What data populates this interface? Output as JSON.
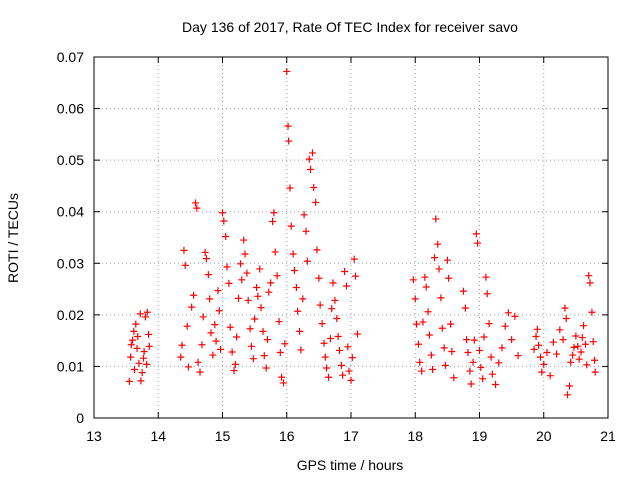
{
  "chart_data": {
    "type": "scatter",
    "title": "Day 136 of 2017, Rate Of TEC Index for receiver savo",
    "xlabel": "GPS time / hours",
    "ylabel": "ROTI / TECUs",
    "xlim": [
      13,
      21
    ],
    "ylim": [
      0,
      0.07
    ],
    "xticks": [
      13,
      14,
      15,
      16,
      17,
      18,
      19,
      20,
      21
    ],
    "yticks": [
      0,
      0.01,
      0.02,
      0.03,
      0.04,
      0.05,
      0.06,
      0.07
    ],
    "xtick_labels": [
      "13",
      "14",
      "15",
      "16",
      "17",
      "18",
      "19",
      "20",
      "21"
    ],
    "ytick_labels": [
      "0",
      "0.01",
      "0.02",
      "0.03",
      "0.04",
      "0.05",
      "0.06",
      "0.07"
    ],
    "grid": true,
    "marker": "+",
    "color": "#ff0000",
    "points": [
      [
        13.55,
        0.0071
      ],
      [
        13.57,
        0.0118
      ],
      [
        13.6,
        0.0151
      ],
      [
        13.62,
        0.0168
      ],
      [
        13.65,
        0.0182
      ],
      [
        13.67,
        0.0135
      ],
      [
        13.7,
        0.0106
      ],
      [
        13.72,
        0.0202
      ],
      [
        13.75,
        0.0088
      ],
      [
        13.78,
        0.0129
      ],
      [
        13.8,
        0.0196
      ],
      [
        13.82,
        0.0104
      ],
      [
        13.85,
        0.0162
      ],
      [
        13.58,
        0.0142
      ],
      [
        13.63,
        0.0094
      ],
      [
        13.68,
        0.0158
      ],
      [
        13.73,
        0.0072
      ],
      [
        13.77,
        0.0116
      ],
      [
        13.83,
        0.0205
      ],
      [
        13.86,
        0.0139
      ],
      [
        14.35,
        0.0118
      ],
      [
        14.37,
        0.0141
      ],
      [
        14.4,
        0.0325
      ],
      [
        14.42,
        0.0296
      ],
      [
        14.45,
        0.0178
      ],
      [
        14.47,
        0.0099
      ],
      [
        14.52,
        0.0215
      ],
      [
        14.55,
        0.0238
      ],
      [
        14.58,
        0.0417
      ],
      [
        14.6,
        0.0407
      ],
      [
        14.62,
        0.0108
      ],
      [
        14.65,
        0.0089
      ],
      [
        14.68,
        0.0142
      ],
      [
        14.7,
        0.0196
      ],
      [
        14.73,
        0.0321
      ],
      [
        14.75,
        0.0309
      ],
      [
        14.78,
        0.0278
      ],
      [
        14.8,
        0.0231
      ],
      [
        14.82,
        0.0165
      ],
      [
        14.85,
        0.0122
      ],
      [
        14.88,
        0.0181
      ],
      [
        14.9,
        0.0149
      ],
      [
        14.93,
        0.0247
      ],
      [
        14.95,
        0.0208
      ],
      [
        14.97,
        0.0133
      ],
      [
        15.0,
        0.0398
      ],
      [
        15.02,
        0.0382
      ],
      [
        15.05,
        0.0352
      ],
      [
        15.07,
        0.0293
      ],
      [
        15.1,
        0.0261
      ],
      [
        15.12,
        0.0176
      ],
      [
        15.15,
        0.0128
      ],
      [
        15.18,
        0.0092
      ],
      [
        15.2,
        0.0104
      ],
      [
        15.22,
        0.0157
      ],
      [
        15.25,
        0.0232
      ],
      [
        15.28,
        0.0299
      ],
      [
        15.3,
        0.0268
      ],
      [
        15.33,
        0.0345
      ],
      [
        15.35,
        0.0318
      ],
      [
        15.38,
        0.0281
      ],
      [
        15.4,
        0.0228
      ],
      [
        15.43,
        0.0173
      ],
      [
        15.45,
        0.0139
      ],
      [
        15.48,
        0.0115
      ],
      [
        15.5,
        0.0192
      ],
      [
        15.53,
        0.0253
      ],
      [
        15.55,
        0.0236
      ],
      [
        15.58,
        0.0289
      ],
      [
        15.6,
        0.0214
      ],
      [
        15.63,
        0.0168
      ],
      [
        15.65,
        0.0121
      ],
      [
        15.68,
        0.0097
      ],
      [
        15.7,
        0.0152
      ],
      [
        15.72,
        0.0244
      ],
      [
        15.75,
        0.0262
      ],
      [
        15.78,
        0.0381
      ],
      [
        15.8,
        0.0398
      ],
      [
        15.82,
        0.0322
      ],
      [
        15.85,
        0.0276
      ],
      [
        15.88,
        0.0187
      ],
      [
        15.9,
        0.0127
      ],
      [
        15.92,
        0.0079
      ],
      [
        15.95,
        0.0068
      ],
      [
        15.97,
        0.0144
      ],
      [
        16.0,
        0.0672
      ],
      [
        16.02,
        0.0566
      ],
      [
        16.03,
        0.0537
      ],
      [
        16.05,
        0.0446
      ],
      [
        16.07,
        0.0372
      ],
      [
        16.1,
        0.0318
      ],
      [
        16.12,
        0.0286
      ],
      [
        16.15,
        0.0253
      ],
      [
        16.17,
        0.0207
      ],
      [
        16.2,
        0.0168
      ],
      [
        16.22,
        0.0132
      ],
      [
        16.25,
        0.0231
      ],
      [
        16.27,
        0.0394
      ],
      [
        16.3,
        0.0362
      ],
      [
        16.32,
        0.0304
      ],
      [
        16.35,
        0.0502
      ],
      [
        16.37,
        0.0482
      ],
      [
        16.4,
        0.0514
      ],
      [
        16.42,
        0.0447
      ],
      [
        16.45,
        0.0418
      ],
      [
        16.47,
        0.0326
      ],
      [
        16.5,
        0.0271
      ],
      [
        16.52,
        0.0219
      ],
      [
        16.55,
        0.0183
      ],
      [
        16.58,
        0.0145
      ],
      [
        16.6,
        0.0118
      ],
      [
        16.62,
        0.0097
      ],
      [
        16.65,
        0.0079
      ],
      [
        16.68,
        0.0154
      ],
      [
        16.7,
        0.0212
      ],
      [
        16.72,
        0.0262
      ],
      [
        16.75,
        0.0228
      ],
      [
        16.78,
        0.0193
      ],
      [
        16.8,
        0.0158
      ],
      [
        16.82,
        0.0131
      ],
      [
        16.85,
        0.0102
      ],
      [
        16.87,
        0.0083
      ],
      [
        16.9,
        0.0284
      ],
      [
        16.93,
        0.0256
      ],
      [
        16.95,
        0.0138
      ],
      [
        16.97,
        0.0091
      ],
      [
        17.0,
        0.0073
      ],
      [
        17.02,
        0.0117
      ],
      [
        17.05,
        0.0308
      ],
      [
        17.07,
        0.0275
      ],
      [
        17.1,
        0.0163
      ],
      [
        17.97,
        0.0268
      ],
      [
        18.0,
        0.0231
      ],
      [
        18.02,
        0.0182
      ],
      [
        18.05,
        0.0143
      ],
      [
        18.07,
        0.0108
      ],
      [
        18.1,
        0.0091
      ],
      [
        18.12,
        0.0186
      ],
      [
        18.15,
        0.0273
      ],
      [
        18.17,
        0.0254
      ],
      [
        18.2,
        0.0206
      ],
      [
        18.22,
        0.0161
      ],
      [
        18.25,
        0.0122
      ],
      [
        18.27,
        0.0094
      ],
      [
        18.3,
        0.0311
      ],
      [
        18.32,
        0.0386
      ],
      [
        18.35,
        0.0337
      ],
      [
        18.37,
        0.0289
      ],
      [
        18.4,
        0.0233
      ],
      [
        18.42,
        0.0174
      ],
      [
        18.45,
        0.0136
      ],
      [
        18.47,
        0.0102
      ],
      [
        18.5,
        0.0306
      ],
      [
        18.52,
        0.0271
      ],
      [
        18.55,
        0.0182
      ],
      [
        18.57,
        0.0129
      ],
      [
        18.6,
        0.0078
      ],
      [
        18.75,
        0.0246
      ],
      [
        18.78,
        0.0213
      ],
      [
        18.8,
        0.0152
      ],
      [
        18.82,
        0.0127
      ],
      [
        18.85,
        0.0091
      ],
      [
        18.87,
        0.0066
      ],
      [
        18.9,
        0.0108
      ],
      [
        18.92,
        0.0151
      ],
      [
        18.95,
        0.0357
      ],
      [
        18.97,
        0.0339
      ],
      [
        19.0,
        0.0131
      ],
      [
        19.02,
        0.0098
      ],
      [
        19.05,
        0.0076
      ],
      [
        19.07,
        0.0157
      ],
      [
        19.1,
        0.0273
      ],
      [
        19.12,
        0.0241
      ],
      [
        19.15,
        0.0183
      ],
      [
        19.18,
        0.0118
      ],
      [
        19.2,
        0.0085
      ],
      [
        19.25,
        0.0065
      ],
      [
        19.3,
        0.0107
      ],
      [
        19.35,
        0.0136
      ],
      [
        19.4,
        0.0178
      ],
      [
        19.45,
        0.0204
      ],
      [
        19.5,
        0.0152
      ],
      [
        19.55,
        0.0197
      ],
      [
        19.6,
        0.0121
      ],
      [
        19.85,
        0.0133
      ],
      [
        19.88,
        0.0158
      ],
      [
        19.9,
        0.0172
      ],
      [
        19.92,
        0.0141
      ],
      [
        19.95,
        0.0118
      ],
      [
        19.97,
        0.0089
      ],
      [
        20.0,
        0.0104
      ],
      [
        20.05,
        0.0127
      ],
      [
        20.1,
        0.0082
      ],
      [
        20.15,
        0.0147
      ],
      [
        20.2,
        0.0124
      ],
      [
        20.25,
        0.0171
      ],
      [
        20.3,
        0.0152
      ],
      [
        20.33,
        0.0213
      ],
      [
        20.35,
        0.0193
      ],
      [
        20.37,
        0.0045
      ],
      [
        20.4,
        0.0062
      ],
      [
        20.42,
        0.0108
      ],
      [
        20.45,
        0.0122
      ],
      [
        20.47,
        0.0137
      ],
      [
        20.5,
        0.0159
      ],
      [
        20.53,
        0.0139
      ],
      [
        20.55,
        0.0114
      ],
      [
        20.58,
        0.0128
      ],
      [
        20.6,
        0.0156
      ],
      [
        20.62,
        0.0179
      ],
      [
        20.65,
        0.0143
      ],
      [
        20.67,
        0.0103
      ],
      [
        20.7,
        0.0276
      ],
      [
        20.72,
        0.0262
      ],
      [
        20.75,
        0.0205
      ],
      [
        20.77,
        0.0148
      ],
      [
        20.79,
        0.0112
      ],
      [
        20.8,
        0.0089
      ]
    ]
  }
}
